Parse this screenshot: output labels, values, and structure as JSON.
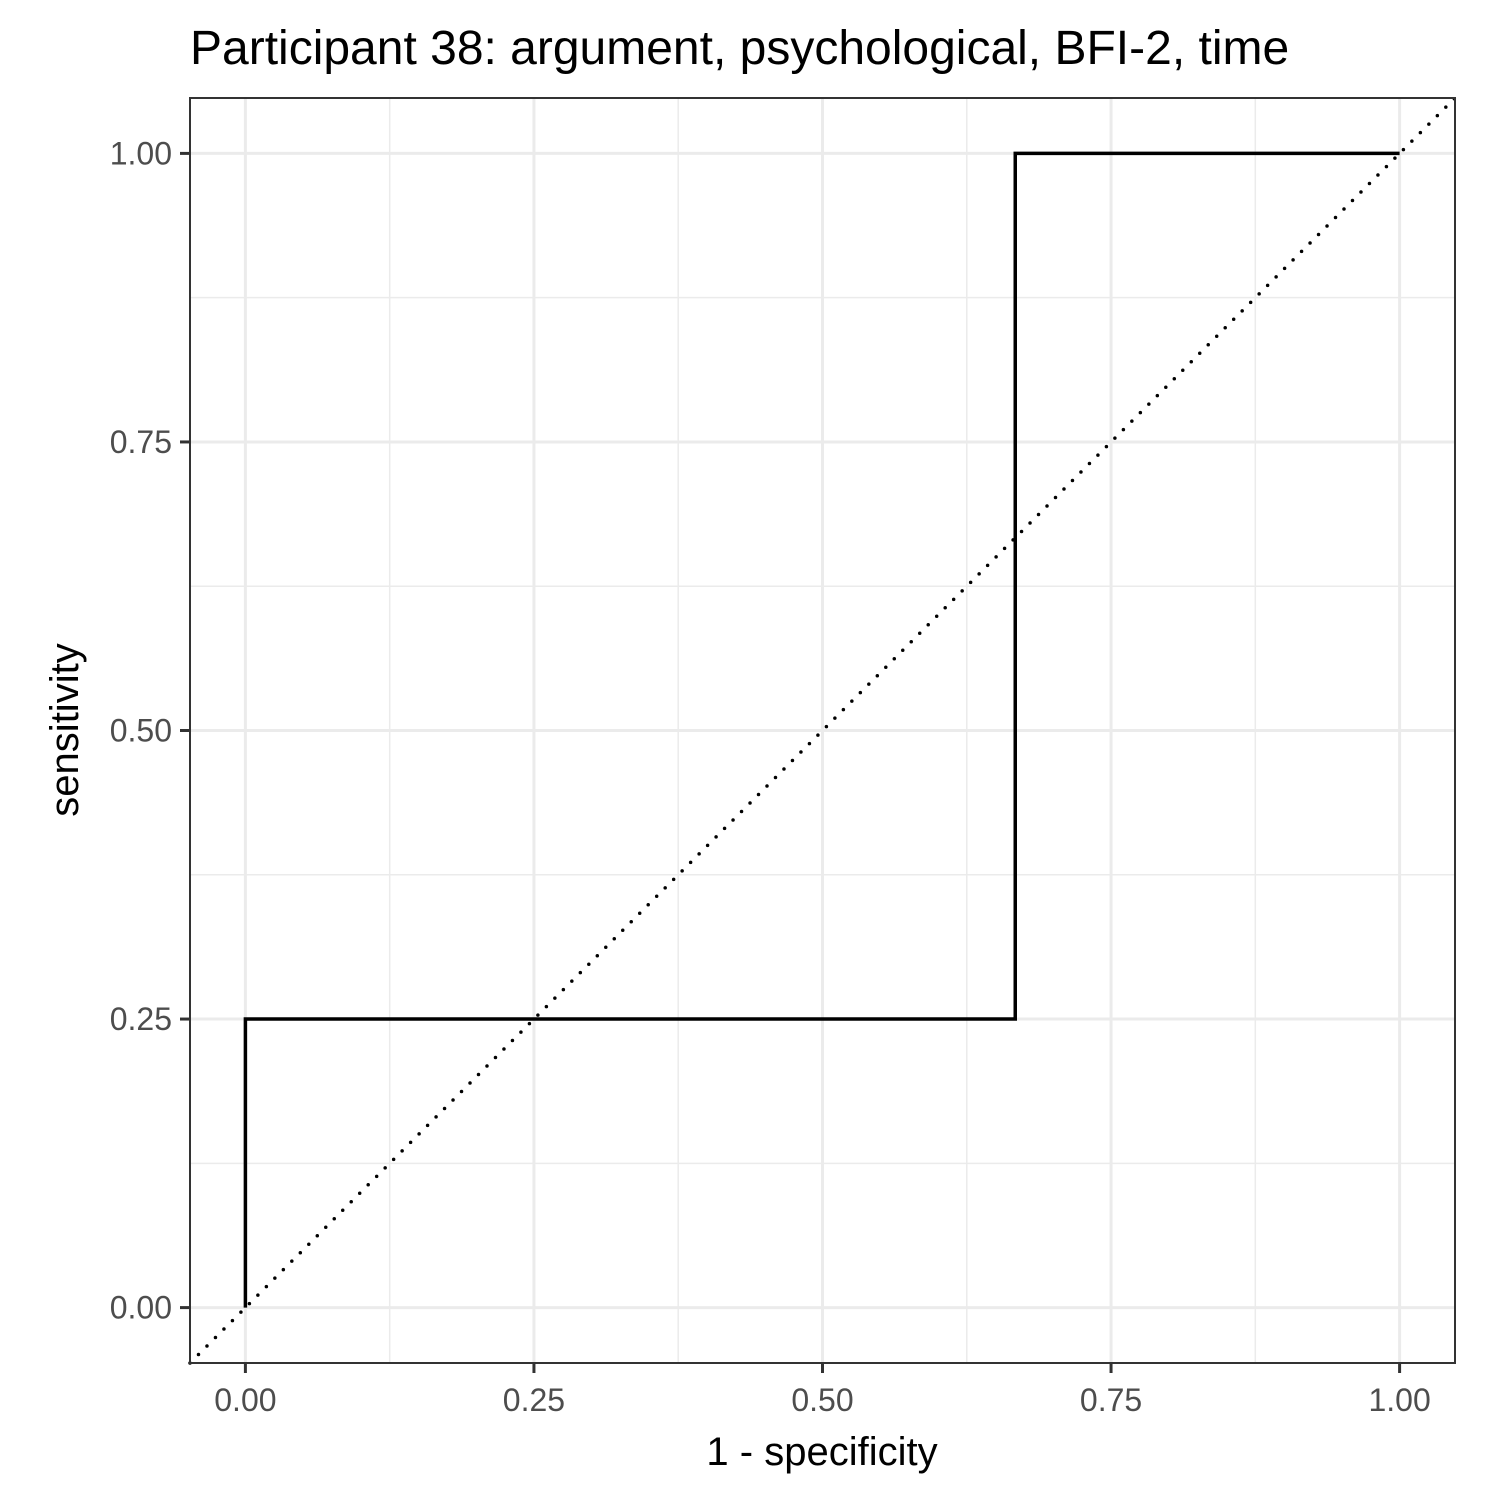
{
  "chart_data": {
    "type": "line",
    "title": "Participant 38: argument, psychological, BFI-2, time",
    "xlabel": "1 - specificity",
    "ylabel": "sensitivity",
    "xlim": [
      -0.048,
      1.048
    ],
    "ylim": [
      -0.048,
      1.048
    ],
    "x_ticks": [
      "0.00",
      "0.25",
      "0.50",
      "0.75",
      "1.00"
    ],
    "y_ticks": [
      "0.00",
      "0.25",
      "0.50",
      "0.75",
      "1.00"
    ],
    "grid": true,
    "series": [
      {
        "style": "step",
        "color": "#000000",
        "x": [
          0.0,
          0.0,
          0.667,
          0.667,
          1.0
        ],
        "y": [
          0.0,
          0.25,
          0.25,
          1.0,
          1.0
        ]
      }
    ],
    "reference_line": {
      "style": "dotted",
      "color": "#000000",
      "x": [
        -0.048,
        1.048
      ],
      "y": [
        -0.048,
        1.048
      ]
    }
  }
}
